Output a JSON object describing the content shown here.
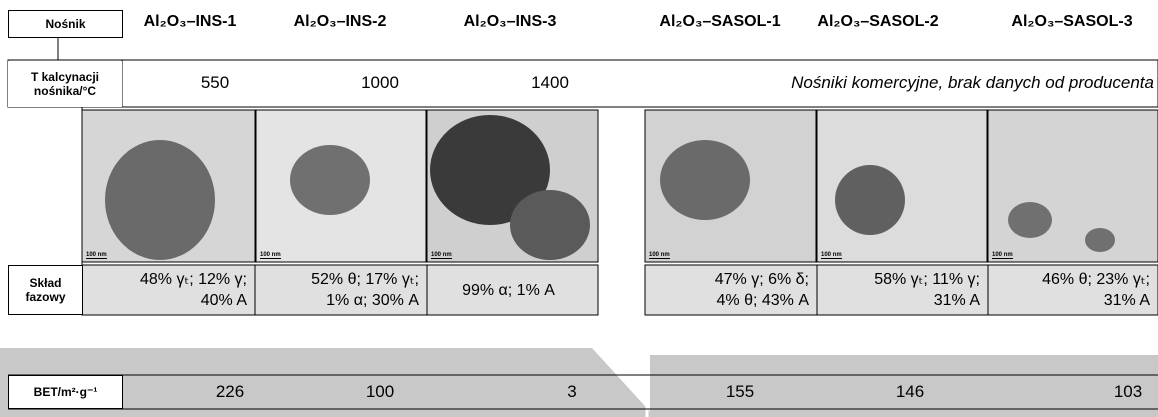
{
  "header": {
    "label": "Nośnik",
    "columns": [
      "Al₂O₃–INS-1",
      "Al₂O₃–INS-2",
      "Al₂O₃–INS-3",
      "Al₂O₃–SASOL-1",
      "Al₂O₃–SASOL-2",
      "Al₂O₃–SASOL-3"
    ]
  },
  "calcination": {
    "label": [
      "T kalcynacji",
      "nośnika/°C"
    ],
    "values": [
      550,
      1000,
      1400
    ],
    "note": "Nośniki komercyjne, brak danych od producenta"
  },
  "images": {
    "scale": [
      "100 nm",
      "100 nm",
      "100 nm",
      "100 nm",
      "100 nm",
      "100 nm"
    ]
  },
  "phase": {
    "label": [
      "Skład",
      "fazowy"
    ],
    "cells": [
      [
        "48% γₜ; 12% γ;",
        "40% A"
      ],
      [
        "52% θ; 17% γₜ;",
        "1% α; 30% A"
      ],
      [
        "99% α; 1% A"
      ],
      [
        "47% γ; 6% δ;",
        "4% θ; 43% A"
      ],
      [
        "58% γₜ; 11% γ;",
        "31% A"
      ],
      [
        "46% θ; 23% γₜ;",
        "31% A"
      ]
    ]
  },
  "bet": {
    "label": "BET/m²·g⁻¹",
    "values": [
      226,
      100,
      3,
      155,
      146,
      103
    ]
  }
}
